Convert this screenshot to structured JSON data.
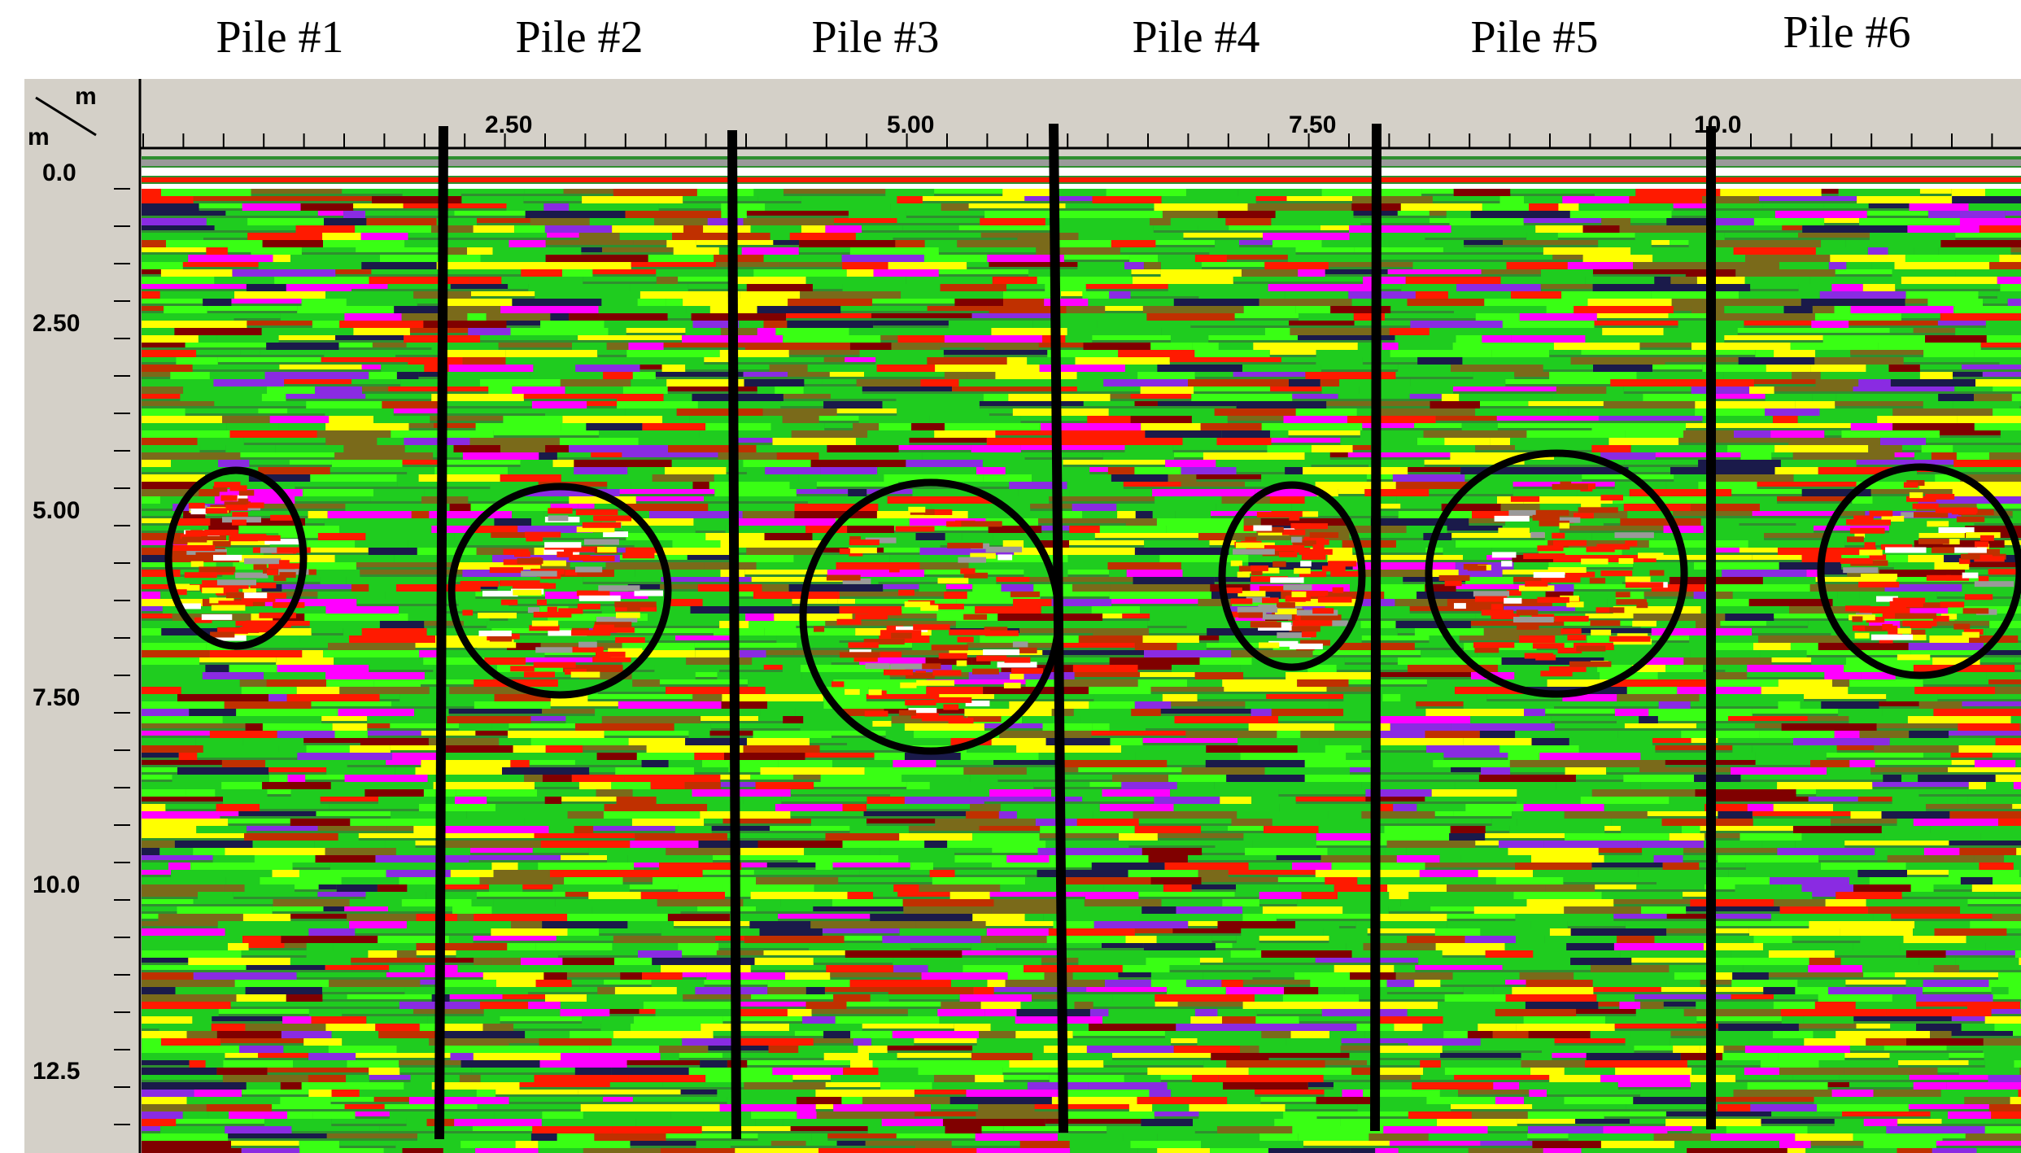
{
  "piles": [
    {
      "label": "Pile #1"
    },
    {
      "label": "Pile #2"
    },
    {
      "label": "Pile #3"
    },
    {
      "label": "Pile #4"
    },
    {
      "label": "Pile #5"
    },
    {
      "label": "Pile #6"
    }
  ],
  "axes": {
    "corner_top_unit": "m",
    "corner_left_unit": "m",
    "horizontal": {
      "unit": "m",
      "ticks": [
        "2.50",
        "5.00",
        "7.50",
        "10.0"
      ],
      "tick_values": [
        2.5,
        5.0,
        7.5,
        10.0
      ]
    },
    "vertical": {
      "unit": "m",
      "ticks": [
        "0.0",
        "2.50",
        "5.00",
        "7.50",
        "10.0",
        "12.5"
      ],
      "tick_values": [
        0.0,
        2.5,
        5.0,
        7.5,
        10.0,
        12.5
      ]
    }
  },
  "colors": {
    "ruler_background": "#d4d0c8",
    "divider": "#000000",
    "circle": "#000000",
    "palette": [
      "#1fcc1f",
      "#39ff14",
      "#ffff00",
      "#ff1a00",
      "#c03000",
      "#800000",
      "#7a6a1a",
      "#ff00ff",
      "#8a2be2",
      "#1a1a4a",
      "#ffffff",
      "#9a9a9a",
      "#2a2a2a"
    ]
  }
}
